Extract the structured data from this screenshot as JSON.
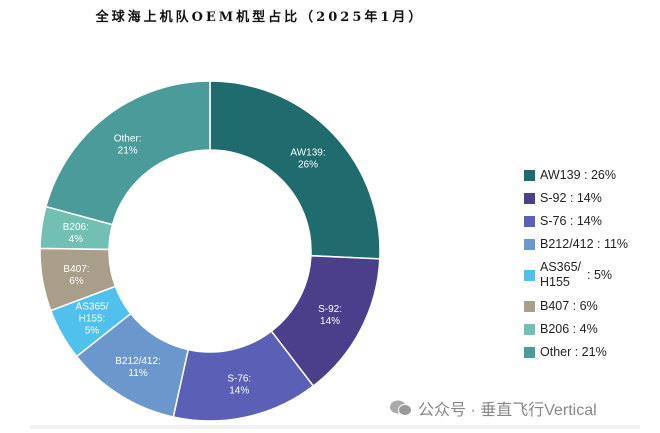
{
  "chart_data": {
    "type": "pie",
    "donut": true,
    "title": "全球海上机队OEM机型占比（2025年1月）",
    "categories": [
      "AW139",
      "S-92",
      "S-76",
      "B212/412",
      "AS365/ H155",
      "B407",
      "B206",
      "Other"
    ],
    "values": [
      26,
      14,
      14,
      11,
      5,
      6,
      4,
      21
    ],
    "unit": "%",
    "colors": [
      "#1f6b6e",
      "#4b3f8c",
      "#5b5fb6",
      "#6b97cd",
      "#4fc1ec",
      "#a99e89",
      "#72c0b3",
      "#4b9b9b"
    ],
    "slice_labels": [
      [
        "AW139:",
        "26%"
      ],
      [
        "S-92:",
        "14%"
      ],
      [
        "S-76:",
        "14%"
      ],
      [
        "B212/412:",
        "11%"
      ],
      [
        "AS365/",
        "H155:",
        "5%"
      ],
      [
        "B407:",
        "6%"
      ],
      [
        "B206:",
        "4%"
      ],
      [
        "Other:",
        "21%"
      ]
    ],
    "legend_position": "right",
    "legend": [
      {
        "label": "AW139",
        "value": ": 26%"
      },
      {
        "label": "S-92",
        "value": ": 14%"
      },
      {
        "label": "S-76",
        "value": ": 14%"
      },
      {
        "label": "B212/412",
        "value": ": 11%"
      },
      {
        "label": "AS365/ H155",
        "value": ": 5%"
      },
      {
        "label": "B407",
        "value": ": 6%"
      },
      {
        "label": "B206",
        "value": ": 4%"
      },
      {
        "label": "Other",
        "value": ": 21%"
      }
    ]
  },
  "watermark": {
    "text": "公众号 · 垂直飞行Vertical",
    "icon": "wechat-icon"
  }
}
